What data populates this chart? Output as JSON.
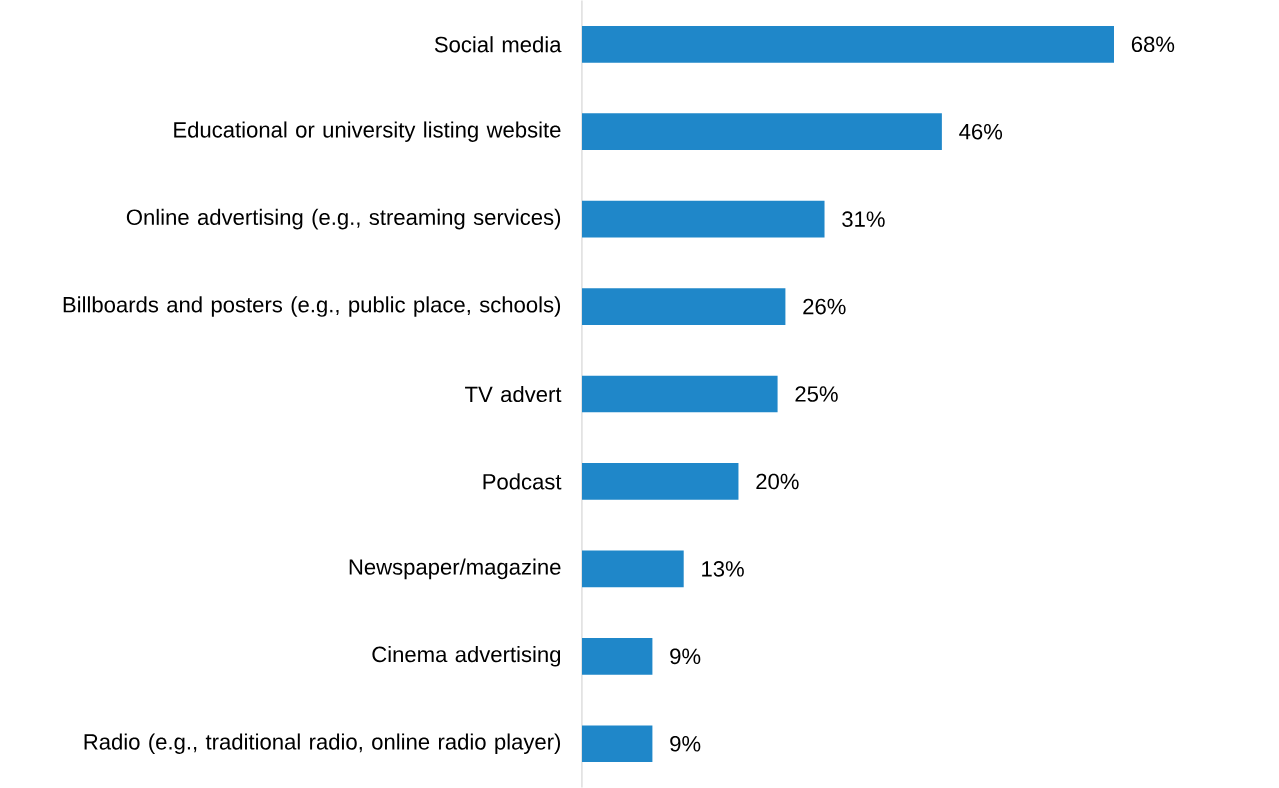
{
  "chart_data": {
    "type": "bar",
    "orientation": "horizontal",
    "categories": [
      "Social media",
      "Educational or university listing website",
      "Online advertising (e.g., streaming services)",
      "Billboards and posters (e.g., public place, schools)",
      "TV advert",
      "Podcast",
      "Newspaper/magazine",
      "Cinema advertising",
      "Radio (e.g., traditional radio, online radio player)"
    ],
    "values": [
      68,
      46,
      31,
      26,
      25,
      20,
      13,
      9,
      9
    ],
    "value_labels": [
      "68%",
      "46%",
      "31%",
      "26%",
      "25%",
      "20%",
      "13%",
      "9%",
      "9%"
    ],
    "color": "#1f87c9"
  }
}
